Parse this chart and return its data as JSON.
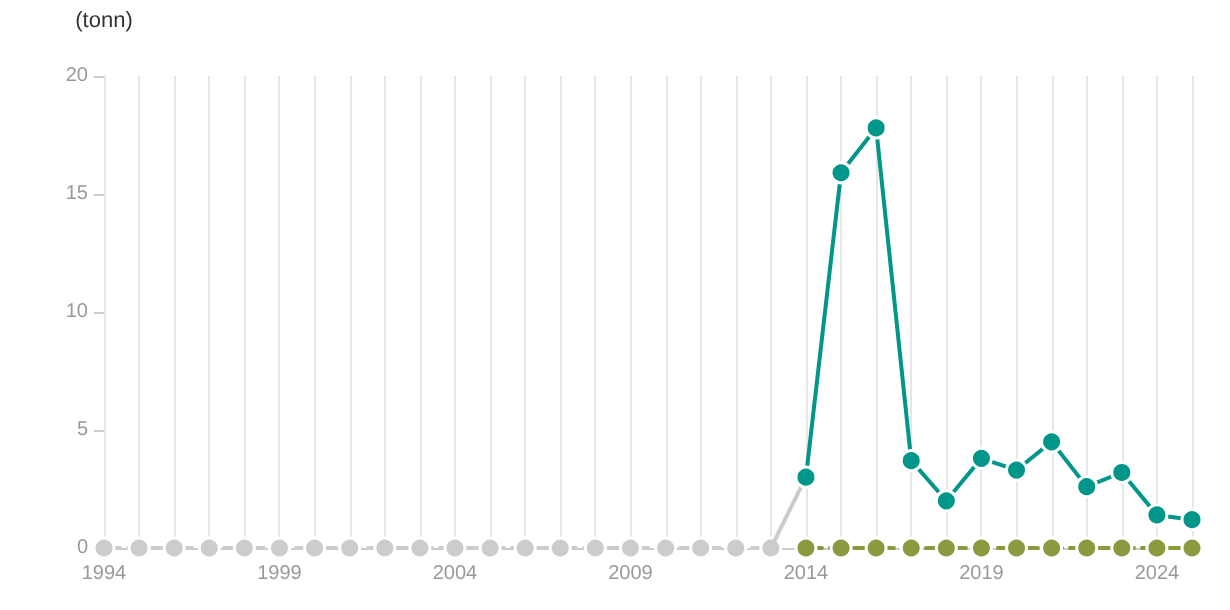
{
  "chart_data": {
    "type": "line",
    "ylabel": "(tonn)",
    "xlim": [
      1994,
      2025
    ],
    "xticks": [
      1994,
      {
        "value": 1995,
        "label": null
      },
      {
        "value": 1996,
        "label": null
      },
      {
        "value": 1997,
        "label": null
      },
      {
        "value": 1998,
        "label": null
      },
      1999,
      {
        "value": 2000,
        "label": null
      },
      {
        "value": 2001,
        "label": null
      },
      {
        "value": 2002,
        "label": null
      },
      {
        "value": 2003,
        "label": null
      },
      2004,
      {
        "value": 2005,
        "label": null
      },
      {
        "value": 2006,
        "label": null
      },
      {
        "value": 2007,
        "label": null
      },
      {
        "value": 2008,
        "label": null
      },
      2009,
      {
        "value": 2010,
        "label": null
      },
      {
        "value": 2011,
        "label": null
      },
      {
        "value": 2012,
        "label": null
      },
      {
        "value": 2013,
        "label": null
      },
      2014,
      {
        "value": 2015,
        "label": null
      },
      {
        "value": 2016,
        "label": null
      },
      {
        "value": 2017,
        "label": null
      },
      {
        "value": 2018,
        "label": null
      },
      2019,
      {
        "value": 2020,
        "label": null
      },
      {
        "value": 2021,
        "label": null
      },
      {
        "value": 2022,
        "label": null
      },
      {
        "value": 2023,
        "label": null
      },
      2024,
      {
        "value": 2025,
        "label": null
      }
    ],
    "ylim": [
      0,
      20
    ],
    "yticks": [
      0,
      5,
      10,
      15,
      20
    ],
    "grid": "x",
    "marker": "circle",
    "series": [
      {
        "color": "#cccccc",
        "line_style": "dashed",
        "x": [
          1994,
          1995,
          1996,
          1997,
          1998,
          1999,
          2000,
          2001,
          2002,
          2003,
          2004,
          2005,
          2006,
          2007,
          2008,
          2009,
          2010,
          2011,
          2012,
          2013
        ],
        "values": [
          0,
          0,
          0,
          0,
          0,
          0,
          0,
          0,
          0,
          0,
          0,
          0,
          0,
          0,
          0,
          0,
          0,
          0,
          0,
          0
        ]
      },
      {
        "color": "#cccccc",
        "line_style": "solid",
        "marker": "none",
        "x": [
          2013,
          2014
        ],
        "values": [
          0,
          3
        ]
      },
      {
        "color": "#8c9a3f",
        "line_style": "dashed",
        "x": [
          2014,
          2015,
          2016,
          2017,
          2018,
          2019,
          2020,
          2021,
          2022,
          2023,
          2024,
          2025
        ],
        "values": [
          0,
          0,
          0,
          0,
          0,
          0,
          0,
          0,
          0,
          0,
          0,
          0
        ]
      },
      {
        "color": "#00968a",
        "line_style": "solid",
        "x": [
          2014,
          2015,
          2016,
          2017,
          2018,
          2019,
          2020,
          2021,
          2022,
          2023,
          2024,
          2025
        ],
        "values": [
          3,
          15.9,
          17.8,
          3.7,
          2,
          3.8,
          3.3,
          4.5,
          2.6,
          3.2,
          1.4,
          1.2
        ]
      }
    ]
  }
}
